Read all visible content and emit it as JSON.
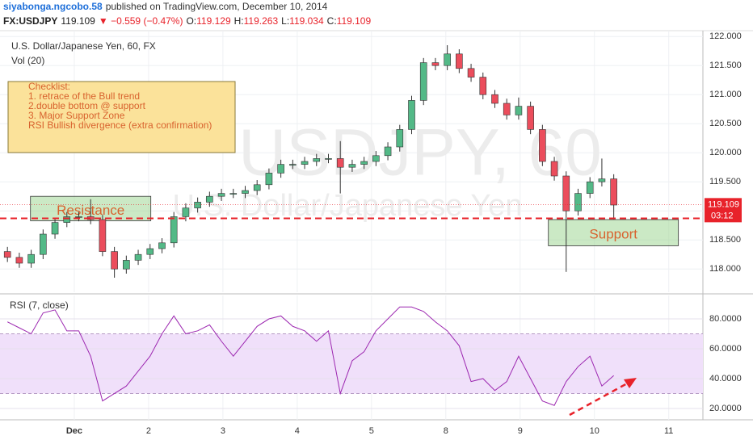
{
  "header": {
    "author": "siyabonga.ngcobo.58",
    "published": "published on TradingView.com, December 10, 2014",
    "symbol": "FX:USDJPY",
    "last": "119.109",
    "change": "▼ −0.559 (−0.47%)",
    "ohlc": [
      {
        "label": "O:",
        "value": "119.129"
      },
      {
        "label": "H:",
        "value": "119.263"
      },
      {
        "label": "L:",
        "value": "119.034"
      },
      {
        "label": "C:",
        "value": "119.109"
      }
    ]
  },
  "chart_data": [
    {
      "type": "candlestick",
      "title": "U.S. Dollar/Japanese Yen, 60, FX",
      "subtitle": "Vol (20)",
      "watermark": "USDJPY, 60",
      "watermark_subtitle": "U.S. Dollar/Japanese Yen",
      "x": [
        0.1,
        0.26,
        0.42,
        0.58,
        0.74,
        0.9,
        1.06,
        1.22,
        1.38,
        1.54,
        1.7,
        1.86,
        2.02,
        2.18,
        2.34,
        2.5,
        2.66,
        2.82,
        2.98,
        3.14,
        3.3,
        3.46,
        3.62,
        3.78,
        3.94,
        4.1,
        4.26,
        4.42,
        4.58,
        4.74,
        4.9,
        5.06,
        5.22,
        5.38,
        5.54,
        5.7,
        5.86,
        6.02,
        6.18,
        6.34,
        6.5,
        6.66,
        6.82,
        6.98,
        7.14,
        7.3,
        7.46,
        7.62,
        7.78,
        7.94,
        8.1,
        8.26
      ],
      "open": [
        118.3,
        118.2,
        118.1,
        118.25,
        118.6,
        118.8,
        118.9,
        118.9,
        118.85,
        118.3,
        118.0,
        118.15,
        118.25,
        118.35,
        118.45,
        118.9,
        119.05,
        119.15,
        119.25,
        119.3,
        119.3,
        119.35,
        119.45,
        119.65,
        119.8,
        119.8,
        119.85,
        119.9,
        119.9,
        119.75,
        119.8,
        119.85,
        119.95,
        120.1,
        120.4,
        120.9,
        121.55,
        121.5,
        121.7,
        121.45,
        121.3,
        121.0,
        120.85,
        120.65,
        120.8,
        120.4,
        119.85,
        119.6,
        119.0,
        119.3,
        119.5,
        119.55
      ],
      "high": [
        118.38,
        118.28,
        118.33,
        118.68,
        118.88,
        118.98,
        118.98,
        119.2,
        118.93,
        118.38,
        118.23,
        118.33,
        118.43,
        118.53,
        118.98,
        119.13,
        119.23,
        119.33,
        119.38,
        119.38,
        119.43,
        119.53,
        119.73,
        119.88,
        119.88,
        119.93,
        119.98,
        119.98,
        120.2,
        119.88,
        119.93,
        120.03,
        120.18,
        120.48,
        120.98,
        121.63,
        121.63,
        121.85,
        121.78,
        121.53,
        121.38,
        121.08,
        120.93,
        120.95,
        120.88,
        120.48,
        119.93,
        119.68,
        119.38,
        119.58,
        119.9,
        119.63
      ],
      "low": [
        118.12,
        118.02,
        118.02,
        118.17,
        118.52,
        118.72,
        118.82,
        118.77,
        118.22,
        117.85,
        117.92,
        118.07,
        118.17,
        118.27,
        118.37,
        118.82,
        118.97,
        119.07,
        119.17,
        119.22,
        119.22,
        119.27,
        119.37,
        119.57,
        119.72,
        119.72,
        119.77,
        119.82,
        119.3,
        119.67,
        119.72,
        119.77,
        119.87,
        120.02,
        120.32,
        120.82,
        121.42,
        121.42,
        121.37,
        121.22,
        120.92,
        120.77,
        120.57,
        120.57,
        120.32,
        119.77,
        119.52,
        117.95,
        118.92,
        119.22,
        119.42,
        118.85
      ],
      "close": [
        118.2,
        118.1,
        118.25,
        118.6,
        118.8,
        118.9,
        118.9,
        118.85,
        118.3,
        118.0,
        118.15,
        118.25,
        118.35,
        118.45,
        118.9,
        119.05,
        119.15,
        119.25,
        119.3,
        119.3,
        119.35,
        119.45,
        119.65,
        119.8,
        119.8,
        119.85,
        119.9,
        119.9,
        119.75,
        119.8,
        119.85,
        119.95,
        120.1,
        120.4,
        120.9,
        121.55,
        121.5,
        121.7,
        121.45,
        121.3,
        121.0,
        120.85,
        120.65,
        120.8,
        120.4,
        119.85,
        119.6,
        119.0,
        119.3,
        119.5,
        119.55,
        119.1
      ],
      "up_color": "#53b987",
      "down_color": "#eb4d5c",
      "xlim": [
        0,
        9.46
      ],
      "xticks": [
        {
          "value": 1,
          "label": "Dec"
        },
        2,
        3,
        4,
        5,
        {
          "value": 6,
          "label": "8"
        },
        {
          "value": 7,
          "label": "9"
        },
        {
          "value": 8,
          "label": "10"
        },
        {
          "value": 9,
          "label": "11"
        }
      ],
      "ylim": [
        117.6,
        122.1
      ],
      "yticks": [
        {
          "value": 118,
          "label": "118.000"
        },
        {
          "value": 118.5,
          "label": "118.500"
        },
        {
          "value": 119,
          "label": "119.000"
        },
        {
          "value": 119.5,
          "label": "119.500"
        },
        {
          "value": 120,
          "label": "120.000"
        },
        {
          "value": 120.5,
          "label": "120.500"
        },
        {
          "value": 121,
          "label": "121.000"
        },
        {
          "value": 121.5,
          "label": "121.500"
        },
        {
          "value": 122,
          "label": "122.000"
        }
      ],
      "grid": true,
      "last_price": {
        "value": 119.109,
        "label": "119.109",
        "countdown": "03:12"
      },
      "hline": 118.87,
      "zones": [
        {
          "label": "Resistance",
          "x": [
            0.41,
            2.03
          ],
          "y": [
            118.83,
            119.25
          ]
        },
        {
          "label": "Support",
          "x": [
            7.38,
            9.13
          ],
          "y": [
            118.4,
            118.85
          ]
        }
      ],
      "checklist": [
        "Checklist:",
        "1. retrace of the Bull trend",
        "2.double bottom @ support",
        "3. Major Support Zone",
        "RSI Bullish divergence (extra confirmation)"
      ]
    },
    {
      "type": "line",
      "title": "RSI (7, close)",
      "color": "#9c27b0",
      "x": [
        0.1,
        0.26,
        0.42,
        0.58,
        0.74,
        0.9,
        1.06,
        1.22,
        1.38,
        1.54,
        1.7,
        1.86,
        2.02,
        2.18,
        2.34,
        2.5,
        2.66,
        2.82,
        2.98,
        3.14,
        3.3,
        3.46,
        3.62,
        3.78,
        3.94,
        4.1,
        4.26,
        4.42,
        4.58,
        4.74,
        4.9,
        5.06,
        5.22,
        5.38,
        5.54,
        5.7,
        5.86,
        6.02,
        6.18,
        6.34,
        6.5,
        6.66,
        6.82,
        6.98,
        7.14,
        7.3,
        7.46,
        7.62,
        7.78,
        7.94,
        8.1,
        8.26
      ],
      "values": [
        78,
        74,
        70,
        84,
        86,
        72,
        72,
        55,
        25,
        30,
        35,
        45,
        55,
        70,
        82,
        70,
        72,
        76,
        65,
        55,
        65,
        75,
        80,
        82,
        75,
        72,
        65,
        72,
        30,
        52,
        58,
        72,
        80,
        88,
        88,
        85,
        78,
        72,
        62,
        38,
        40,
        32,
        38,
        55,
        40,
        25,
        22,
        38,
        48,
        55,
        35,
        42
      ],
      "band": [
        30,
        70
      ],
      "xlim": [
        0,
        9.46
      ],
      "ylim": [
        12.4,
        95.7
      ],
      "yticks": [
        {
          "value": 20,
          "label": "20.0000"
        },
        {
          "value": 40,
          "label": "40.0000"
        },
        {
          "value": 60,
          "label": "60.0000"
        },
        {
          "value": 80,
          "label": "80.0000"
        }
      ],
      "grid": true
    }
  ]
}
